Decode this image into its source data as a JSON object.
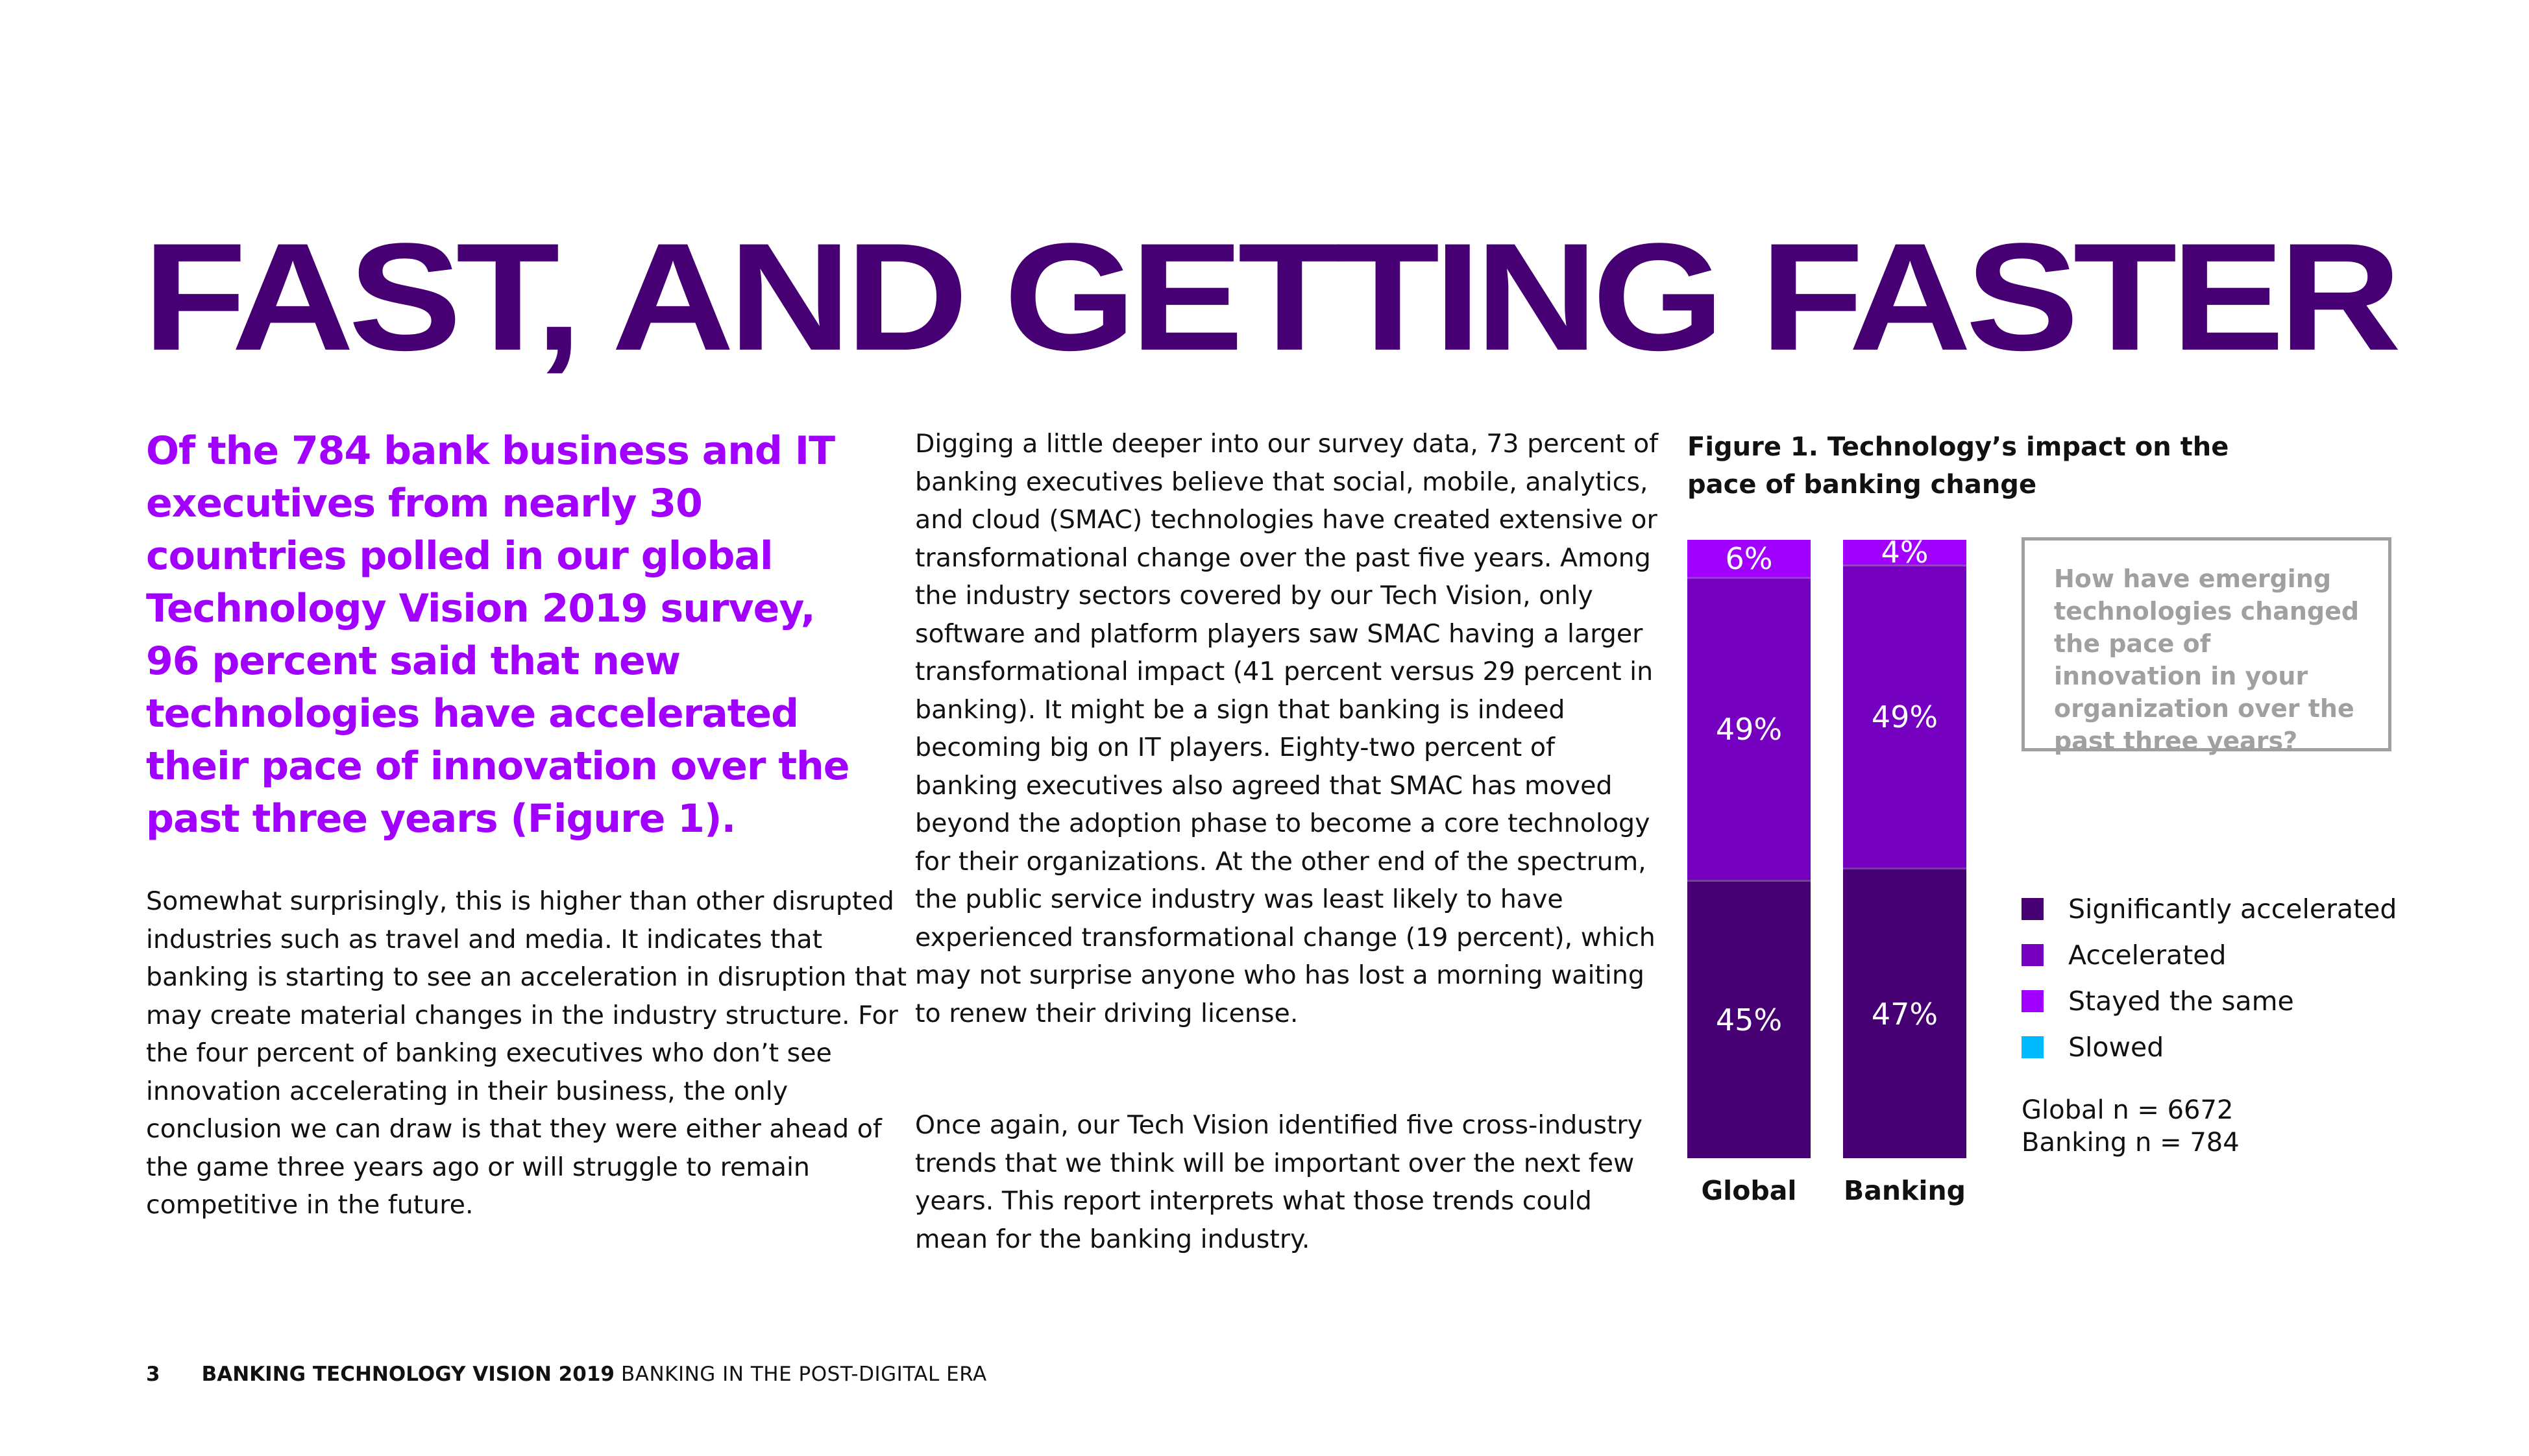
{
  "title": "FAST, AND GETTING FASTER",
  "intro": "Of the 784 bank business and IT executives from nearly 30 countries polled in our global Technology Vision 2019 survey, 96 percent said that new technologies have accelerated their pace of innovation over the past three years (Figure 1).",
  "column1": "Somewhat surprisingly, this is higher than other disrupted industries such as travel and media. It indicates that banking is starting to see an acceleration in disruption that may create material changes in the industry structure. For the four percent of banking executives who don’t see innovation accelerating in their business, the only conclusion we can draw is that they were either ahead of the game three years ago or will struggle to remain competitive in the future.",
  "column2": {
    "para1": "Digging a little deeper into our survey data, 73 percent  of banking executives believe that social, mobile, analytics, and cloud (SMAC) technologies have created extensive or transformational change over the past five years. Among the industry sectors covered by our Tech Vision, only software and platform players saw SMAC having a larger transformational impact (41 percent versus 29 percent in banking). It might be a sign that banking is indeed becoming big on IT players. Eighty-two percent of banking executives also agreed that SMAC has moved beyond the adoption phase to become a core technology for their organizations. At the other end of the spectrum, the public service industry was least likely to have experienced transformational change (19 percent), which may not surprise anyone who has lost a morning waiting to renew their driving license.",
    "para2": "Once again, our Tech Vision identified five cross-industry trends that we think will be important over the next few years. This report interprets what those trends could mean for the banking industry."
  },
  "figure": {
    "title": "Figure 1. Technology’s impact on the pace of banking change",
    "question": "How have emerging technologies changed the pace of innovation in your organization over the past three years?",
    "sample_global": "Global n = 6672",
    "sample_banking": "Banking n = 784"
  },
  "chart_data": {
    "type": "bar",
    "stacked": true,
    "percent": true,
    "title": "Figure 1. Technology’s impact on the pace of banking change",
    "categories": [
      "Global",
      "Banking"
    ],
    "series": [
      {
        "name": "Significantly accelerated",
        "color": "#460073",
        "values": [
          45,
          47
        ],
        "labels": [
          "45%",
          "47%"
        ]
      },
      {
        "name": "Accelerated",
        "color": "#7500c0",
        "values": [
          49,
          49
        ],
        "labels": [
          "49%",
          "49%"
        ]
      },
      {
        "name": "Stayed the same",
        "color": "#a100ff",
        "values": [
          6,
          4
        ],
        "labels": [
          "6%",
          "4%"
        ]
      },
      {
        "name": "Slowed",
        "color": "#00baff",
        "values": [
          0,
          0
        ],
        "labels": [
          "",
          ""
        ]
      }
    ],
    "ylim": [
      0,
      100
    ],
    "legend_position": "right"
  },
  "footer": {
    "page": "3",
    "publication": "BANKING TECHNOLOGY VISION 2019",
    "subtitle": "BANKING IN THE POST-DIGITAL ERA"
  }
}
